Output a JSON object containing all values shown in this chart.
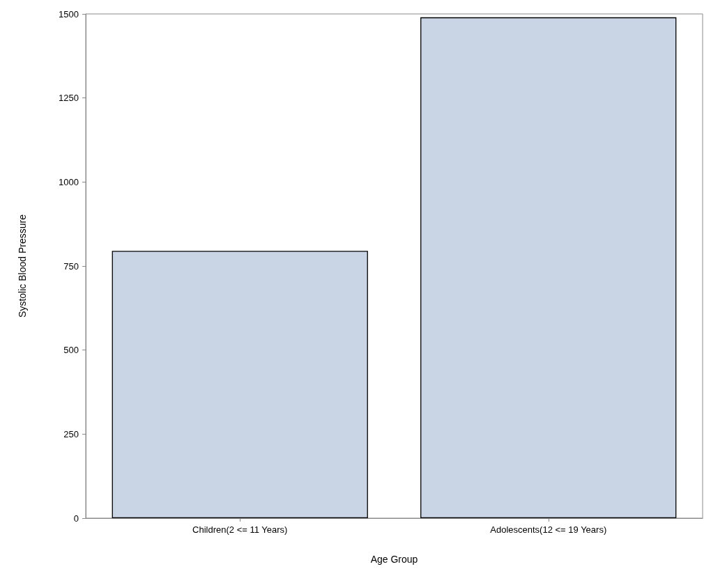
{
  "chart_data": {
    "type": "bar",
    "xlabel": "Age Group",
    "ylabel": "Systolic Blood Pressure",
    "categories": [
      "Children(2 <= 11 Years)",
      "Adolescents(12 <= 19 Years)"
    ],
    "values": [
      795,
      1490
    ],
    "color": "#c9d5e5",
    "ylim": [
      0,
      1500
    ],
    "yticks": [
      0,
      250,
      500,
      750,
      1000,
      1250,
      1500
    ],
    "grid": false
  }
}
